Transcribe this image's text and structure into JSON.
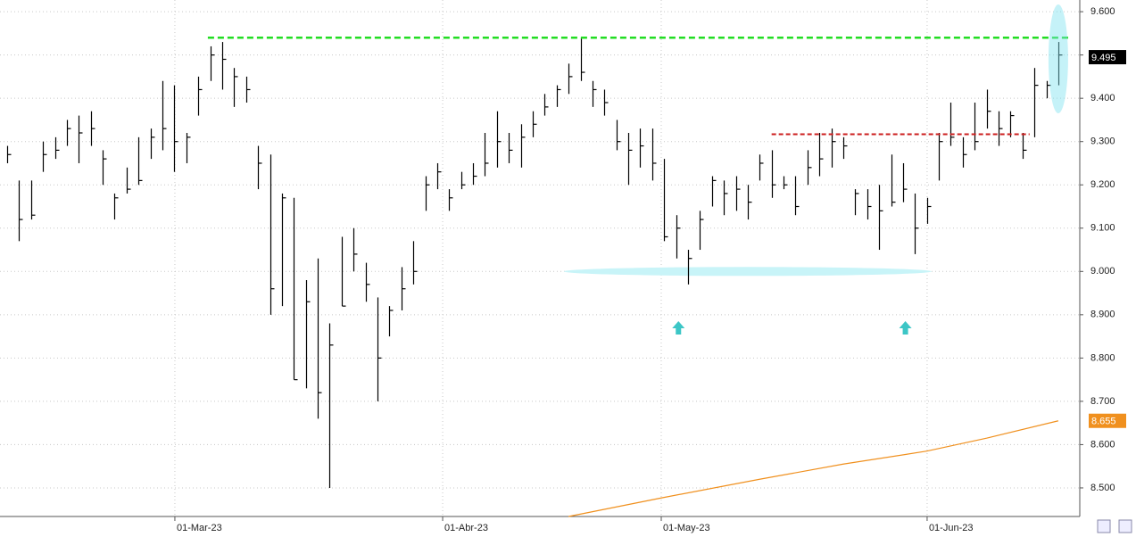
{
  "chart_data": {
    "type": "ohlc",
    "ylim": [
      8.434,
      9.627
    ],
    "yticks": [
      {
        "value": 9.6,
        "label": "9.600"
      },
      {
        "value": 9.5,
        "label": "9.500"
      },
      {
        "value": 9.4,
        "label": "9.400"
      },
      {
        "value": 9.3,
        "label": "9.300"
      },
      {
        "value": 9.2,
        "label": "9.200"
      },
      {
        "value": 9.1,
        "label": "9.100"
      },
      {
        "value": 9.0,
        "label": "9.000"
      },
      {
        "value": 8.9,
        "label": "8.900"
      },
      {
        "value": 8.8,
        "label": "8.800"
      },
      {
        "value": 8.7,
        "label": "8.700"
      },
      {
        "value": 8.6,
        "label": "8.600"
      },
      {
        "value": 8.5,
        "label": "8.500"
      }
    ],
    "xlim": [
      -0.6,
      89.8
    ],
    "xticks": [
      {
        "value": 14.04,
        "label": "01-Mar-23"
      },
      {
        "value": 36.46,
        "label": "01-Abr-23"
      },
      {
        "value": 54.76,
        "label": "01-May-23"
      },
      {
        "value": 77.02,
        "label": "01-Jun-23"
      }
    ],
    "grid": true,
    "color": "#000000",
    "high": [
      9.29,
      9.21,
      9.21,
      9.3,
      9.31,
      9.35,
      9.36,
      9.37,
      9.28,
      9.18,
      9.24,
      9.31,
      9.33,
      9.44,
      9.43,
      9.32,
      9.45,
      9.52,
      9.53,
      9.47,
      9.45,
      9.29,
      9.27,
      9.18,
      9.17,
      8.98,
      9.03,
      8.88,
      9.08,
      9.1,
      9.02,
      8.94,
      8.92,
      9.01,
      9.07,
      9.22,
      9.25,
      9.19,
      9.23,
      9.25,
      9.32,
      9.37,
      9.32,
      9.34,
      9.37,
      9.41,
      9.43,
      9.48,
      9.54,
      9.44,
      9.42,
      9.35,
      9.32,
      9.33,
      9.33,
      9.26,
      9.13,
      9.05,
      9.14,
      9.22,
      9.21,
      9.22,
      9.2,
      9.27,
      9.28,
      9.22,
      9.22,
      9.28,
      9.32,
      9.33,
      9.31,
      9.19,
      9.19,
      9.2,
      9.27,
      9.25,
      9.18,
      9.17,
      9.32,
      9.39,
      9.31,
      9.39,
      9.42,
      9.37,
      9.37,
      9.32,
      9.47,
      9.44,
      9.53
    ],
    "low": [
      9.25,
      9.07,
      9.12,
      9.23,
      9.26,
      9.29,
      9.25,
      9.29,
      9.2,
      9.12,
      9.18,
      9.2,
      9.26,
      9.28,
      9.23,
      9.25,
      9.36,
      9.44,
      9.42,
      9.38,
      9.39,
      9.19,
      8.9,
      8.92,
      8.75,
      8.73,
      8.66,
      8.5,
      8.92,
      9.0,
      8.93,
      8.7,
      8.85,
      8.91,
      8.97,
      9.14,
      9.19,
      9.14,
      9.19,
      9.2,
      9.22,
      9.24,
      9.25,
      9.24,
      9.31,
      9.36,
      9.38,
      9.41,
      9.44,
      9.38,
      9.36,
      9.28,
      9.2,
      9.24,
      9.21,
      9.07,
      9.03,
      8.97,
      9.05,
      9.15,
      9.13,
      9.14,
      9.12,
      9.21,
      9.17,
      9.19,
      9.13,
      9.2,
      9.22,
      9.24,
      9.26,
      9.13,
      9.12,
      9.05,
      9.15,
      9.16,
      9.04,
      9.11,
      9.21,
      9.29,
      9.24,
      9.28,
      9.33,
      9.29,
      9.31,
      9.26,
      9.31,
      9.4,
      9.43
    ],
    "close": [
      9.27,
      9.12,
      9.13,
      9.27,
      9.28,
      9.33,
      9.32,
      9.33,
      9.26,
      9.17,
      9.19,
      9.21,
      9.31,
      9.33,
      9.3,
      9.31,
      9.42,
      9.5,
      9.49,
      9.45,
      9.42,
      9.25,
      8.96,
      9.17,
      8.75,
      8.93,
      8.72,
      8.83,
      8.92,
      9.04,
      8.97,
      8.8,
      8.91,
      8.96,
      9.0,
      9.2,
      9.23,
      9.17,
      9.2,
      9.22,
      9.25,
      9.3,
      9.28,
      9.31,
      9.34,
      9.38,
      9.42,
      9.45,
      9.46,
      9.42,
      9.39,
      9.3,
      9.28,
      9.29,
      9.25,
      9.08,
      9.1,
      9.03,
      9.12,
      9.21,
      9.18,
      9.19,
      9.16,
      9.25,
      9.2,
      9.2,
      9.15,
      9.24,
      9.26,
      9.3,
      9.29,
      9.18,
      9.15,
      9.14,
      9.16,
      9.19,
      9.1,
      9.15,
      9.3,
      9.31,
      9.27,
      9.3,
      9.37,
      9.33,
      9.36,
      9.28,
      9.43,
      9.43,
      9.5
    ],
    "ma_x": [
      47,
      54.8,
      63,
      70,
      77,
      82,
      88
    ],
    "ma_values": [
      8.434,
      8.477,
      8.52,
      8.555,
      8.585,
      8.615,
      8.655
    ],
    "ma_color": "#f0901e",
    "last_price": 9.495,
    "ma_last": 8.655,
    "resistance": 9.54,
    "resistance_color": "#22dd22",
    "resistance_from": 16.8,
    "breakout": 9.317,
    "breakout_color": "#cc1f1f",
    "breakout_from": 64,
    "breakout_to": 85.6,
    "support": 9.0
  }
}
